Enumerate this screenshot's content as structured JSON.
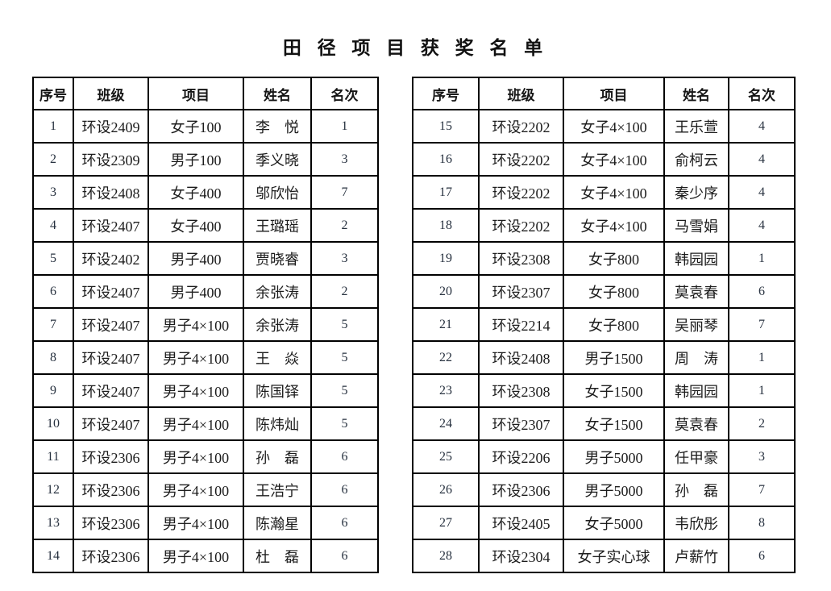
{
  "title": "田 径 项 目 获 奖 名 单",
  "colors": {
    "background": "#ffffff",
    "border": "#000000",
    "text": "#1c1c1c"
  },
  "tables": {
    "headers": [
      "序号",
      "班级",
      "项目",
      "姓名",
      "名次"
    ],
    "left": {
      "rows": [
        [
          "1",
          "环设2409",
          "女子100",
          "李　悦",
          "1"
        ],
        [
          "2",
          "环设2309",
          "男子100",
          "季义晓",
          "3"
        ],
        [
          "3",
          "环设2408",
          "女子400",
          "邬欣怡",
          "7"
        ],
        [
          "4",
          "环设2407",
          "女子400",
          "王璐瑶",
          "2"
        ],
        [
          "5",
          "环设2402",
          "男子400",
          "贾晓睿",
          "3"
        ],
        [
          "6",
          "环设2407",
          "男子400",
          "余张涛",
          "2"
        ],
        [
          "7",
          "环设2407",
          "男子4×100",
          "余张涛",
          "5"
        ],
        [
          "8",
          "环设2407",
          "男子4×100",
          "王　焱",
          "5"
        ],
        [
          "9",
          "环设2407",
          "男子4×100",
          "陈国铎",
          "5"
        ],
        [
          "10",
          "环设2407",
          "男子4×100",
          "陈炜灿",
          "5"
        ],
        [
          "11",
          "环设2306",
          "男子4×100",
          "孙　磊",
          "6"
        ],
        [
          "12",
          "环设2306",
          "男子4×100",
          "王浩宁",
          "6"
        ],
        [
          "13",
          "环设2306",
          "男子4×100",
          "陈瀚星",
          "6"
        ],
        [
          "14",
          "环设2306",
          "男子4×100",
          "杜　磊",
          "6"
        ]
      ]
    },
    "right": {
      "rows": [
        [
          "15",
          "环设2202",
          "女子4×100",
          "王乐萱",
          "4"
        ],
        [
          "16",
          "环设2202",
          "女子4×100",
          "俞柯云",
          "4"
        ],
        [
          "17",
          "环设2202",
          "女子4×100",
          "秦少序",
          "4"
        ],
        [
          "18",
          "环设2202",
          "女子4×100",
          "马雪娟",
          "4"
        ],
        [
          "19",
          "环设2308",
          "女子800",
          "韩园园",
          "1"
        ],
        [
          "20",
          "环设2307",
          "女子800",
          "莫袁春",
          "6"
        ],
        [
          "21",
          "环设2214",
          "女子800",
          "吴丽琴",
          "7"
        ],
        [
          "22",
          "环设2408",
          "男子1500",
          "周　涛",
          "1"
        ],
        [
          "23",
          "环设2308",
          "女子1500",
          "韩园园",
          "1"
        ],
        [
          "24",
          "环设2307",
          "女子1500",
          "莫袁春",
          "2"
        ],
        [
          "25",
          "环设2206",
          "男子5000",
          "任甲豪",
          "3"
        ],
        [
          "26",
          "环设2306",
          "男子5000",
          "孙　磊",
          "7"
        ],
        [
          "27",
          "环设2405",
          "女子5000",
          "韦欣彤",
          "8"
        ],
        [
          "28",
          "环设2304",
          "女子实心球",
          "卢薪竹",
          "6"
        ]
      ]
    }
  }
}
